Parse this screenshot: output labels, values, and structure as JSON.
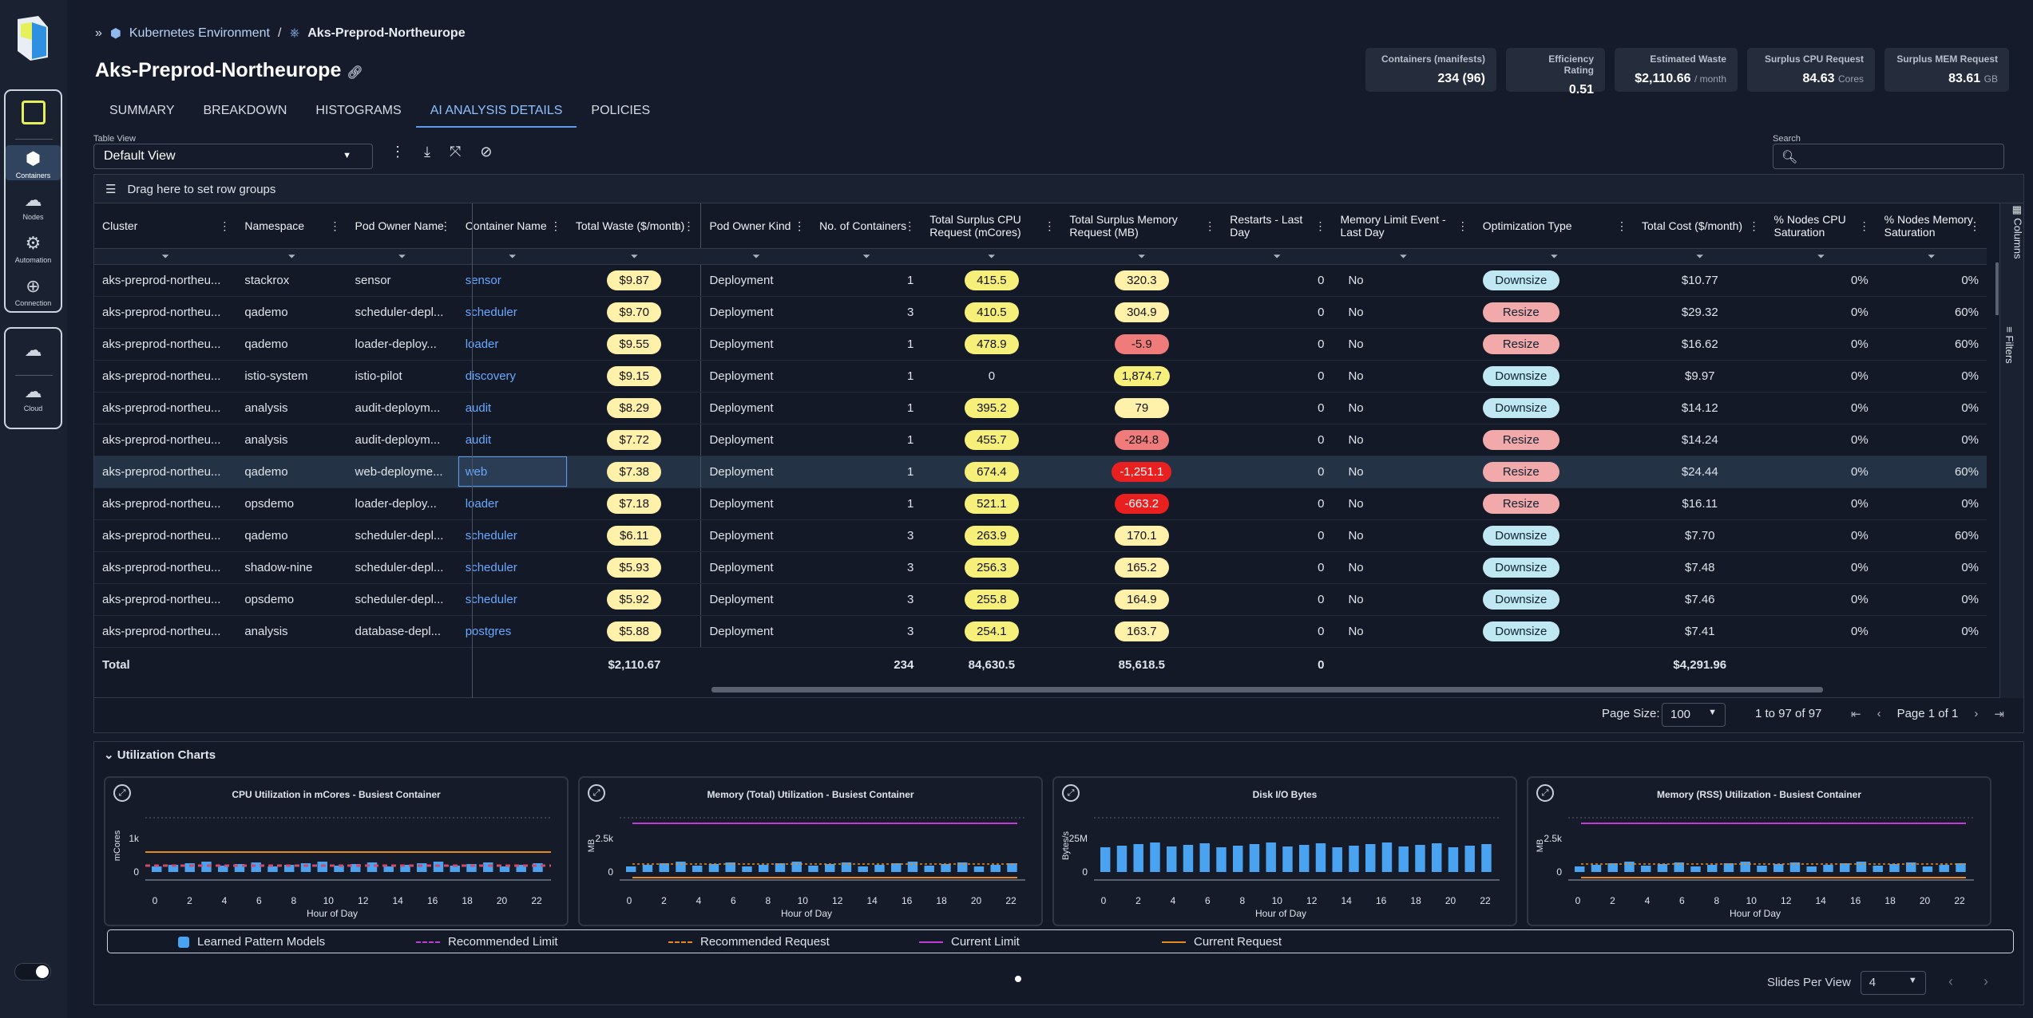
{
  "breadcrumb": {
    "parent": "Kubernetes Environment",
    "current": "Aks-Preprod-Northeurope"
  },
  "page_title": "Aks-Preprod-Northeurope",
  "rail": {
    "items": [
      {
        "label": "Containers",
        "icon": "containers-icon"
      },
      {
        "label": "Nodes",
        "icon": "nodes-icon"
      },
      {
        "label": "Automation",
        "icon": "gear-icon"
      },
      {
        "label": "Connection",
        "icon": "plus-circle-icon"
      }
    ],
    "cloud": {
      "label": "Cloud",
      "icon": "cloud-icon"
    }
  },
  "kpis": [
    {
      "label": "Containers (manifests)",
      "value": "234 (96)",
      "unit": ""
    },
    {
      "label": "Efficiency Rating",
      "value": "0.51",
      "unit": ""
    },
    {
      "label": "Estimated Waste",
      "value": "$2,110.66",
      "unit": "/ month"
    },
    {
      "label": "Surplus CPU Request",
      "value": "84.63",
      "unit": "Cores"
    },
    {
      "label": "Surplus MEM Request",
      "value": "83.61",
      "unit": "GB"
    }
  ],
  "tabs": [
    "SUMMARY",
    "BREAKDOWN",
    "HISTOGRAMS",
    "AI ANALYSIS DETAILS",
    "POLICIES"
  ],
  "active_tab": "AI ANALYSIS DETAILS",
  "table_view": {
    "label": "Table View",
    "value": "Default View"
  },
  "search": {
    "label": "Search",
    "placeholder": ""
  },
  "row_groups": "Drag here to set row groups",
  "columns": [
    "Cluster",
    "Namespace",
    "Pod Owner Name",
    "Container Name",
    "Total Waste ($/month)",
    "Pod Owner Kind",
    "No. of Containers",
    "Total Surplus CPU Request (mCores)",
    "Total Surplus Memory Request (MB)",
    "Restarts - Last Day",
    "Memory Limit Event - Last Day",
    "Optimization Type",
    "Total Cost ($/month)",
    "% Nodes CPU Saturation",
    "% Nodes Memory Saturation"
  ],
  "rows": [
    [
      "aks-preprod-northeu...",
      "stackrox",
      "sensor",
      "sensor",
      "$9.87",
      "Deployment",
      "1",
      "415.5",
      "320.3",
      "0",
      "No",
      "Downsize",
      "$10.77",
      "0%",
      "0%"
    ],
    [
      "aks-preprod-northeu...",
      "qademo",
      "scheduler-depl...",
      "scheduler",
      "$9.70",
      "Deployment",
      "3",
      "410.5",
      "304.9",
      "0",
      "No",
      "Resize",
      "$29.32",
      "0%",
      "60%"
    ],
    [
      "aks-preprod-northeu...",
      "qademo",
      "loader-deploy...",
      "loader",
      "$9.55",
      "Deployment",
      "1",
      "478.9",
      "-5.9",
      "0",
      "No",
      "Resize",
      "$16.62",
      "0%",
      "60%"
    ],
    [
      "aks-preprod-northeu...",
      "istio-system",
      "istio-pilot",
      "discovery",
      "$9.15",
      "Deployment",
      "1",
      "0",
      "1,874.7",
      "0",
      "No",
      "Downsize",
      "$9.97",
      "0%",
      "0%"
    ],
    [
      "aks-preprod-northeu...",
      "analysis",
      "audit-deploym...",
      "audit",
      "$8.29",
      "Deployment",
      "1",
      "395.2",
      "79",
      "0",
      "No",
      "Downsize",
      "$14.12",
      "0%",
      "0%"
    ],
    [
      "aks-preprod-northeu...",
      "analysis",
      "audit-deploym...",
      "audit",
      "$7.72",
      "Deployment",
      "1",
      "455.7",
      "-284.8",
      "0",
      "No",
      "Resize",
      "$14.24",
      "0%",
      "0%"
    ],
    [
      "aks-preprod-northeu...",
      "qademo",
      "web-deployme...",
      "web",
      "$7.38",
      "Deployment",
      "1",
      "674.4",
      "-1,251.1",
      "0",
      "No",
      "Resize",
      "$24.44",
      "0%",
      "60%"
    ],
    [
      "aks-preprod-northeu...",
      "opsdemo",
      "loader-deploy...",
      "loader",
      "$7.18",
      "Deployment",
      "1",
      "521.1",
      "-663.2",
      "0",
      "No",
      "Resize",
      "$16.11",
      "0%",
      "0%"
    ],
    [
      "aks-preprod-northeu...",
      "qademo",
      "scheduler-depl...",
      "scheduler",
      "$6.11",
      "Deployment",
      "3",
      "263.9",
      "170.1",
      "0",
      "No",
      "Downsize",
      "$7.70",
      "0%",
      "60%"
    ],
    [
      "aks-preprod-northeu...",
      "shadow-nine",
      "scheduler-depl...",
      "scheduler",
      "$5.93",
      "Deployment",
      "3",
      "256.3",
      "165.2",
      "0",
      "No",
      "Downsize",
      "$7.48",
      "0%",
      "0%"
    ],
    [
      "aks-preprod-northeu...",
      "opsdemo",
      "scheduler-depl...",
      "scheduler",
      "$5.92",
      "Deployment",
      "3",
      "255.8",
      "164.9",
      "0",
      "No",
      "Downsize",
      "$7.46",
      "0%",
      "0%"
    ],
    [
      "aks-preprod-northeu...",
      "analysis",
      "database-depl...",
      "postgres",
      "$5.88",
      "Deployment",
      "3",
      "254.1",
      "163.7",
      "0",
      "No",
      "Downsize",
      "$7.41",
      "0%",
      "0%"
    ]
  ],
  "totals": {
    "label": "Total",
    "waste": "$2,110.67",
    "containers": "234",
    "cpu": "84,630.5",
    "mem": "85,618.5",
    "restarts": "0",
    "cost": "$4,291.96"
  },
  "side_panels": [
    "Columns",
    "Filters"
  ],
  "pager": {
    "page_size_label": "Page Size:",
    "page_size": "100",
    "count": "1 to 97 of 97",
    "page": "Page 1 of 1"
  },
  "utilization": {
    "title": "Utilization Charts",
    "charts": [
      {
        "title": "CPU Utilization in mCores - Busiest Container",
        "ylabel": "mCores",
        "yticks": [
          "1k",
          "0"
        ],
        "xlabel": "Hour of Day"
      },
      {
        "title": "Memory (Total) Utilization - Busiest Container",
        "ylabel": "MB",
        "yticks": [
          "2.5k",
          "0"
        ],
        "xlabel": "Hour of Day"
      },
      {
        "title": "Disk I/O Bytes",
        "ylabel": "Bytes/s",
        "yticks": [
          "25M",
          "0"
        ],
        "xlabel": "Hour of Day"
      },
      {
        "title": "Memory (RSS) Utilization - Busiest Container",
        "ylabel": "MB",
        "yticks": [
          "2.5k",
          "0"
        ],
        "xlabel": "Hour of Day"
      }
    ],
    "xticks": [
      "0",
      "2",
      "4",
      "6",
      "8",
      "10",
      "12",
      "14",
      "16",
      "18",
      "20",
      "22"
    ],
    "legend": [
      "Learned Pattern Models",
      "Recommended Limit",
      "Recommended Request",
      "Current Limit",
      "Current Request"
    ],
    "slides_label": "Slides Per View",
    "slides_value": "4"
  },
  "colors": {
    "accent": "#5b9bea",
    "bar": "#4aa3f0",
    "current_limit": "#c23bd4",
    "current_request": "#e8891d",
    "recommended": "#e8891d"
  }
}
